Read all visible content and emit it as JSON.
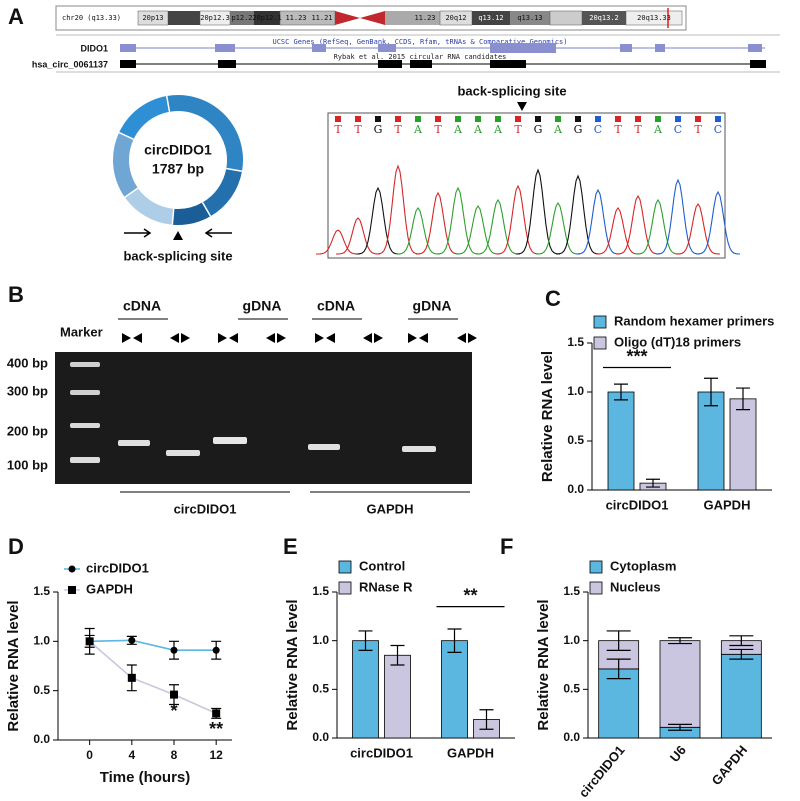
{
  "panel_a": {
    "label": "A",
    "ideogram": {
      "chrom": "chr20 (q13.33)",
      "bands": [
        "20p13",
        "20p12.3",
        "p12.2",
        "20p12.1",
        "11.23",
        "11.21",
        "11.23",
        "20q12",
        "q13.12",
        "q13.13",
        "20q13.2",
        "20q13.33"
      ]
    },
    "track_header": "UCSC Genes (RefSeq, GenBank, CCDS, Rfam, tRNAs & Comparative Genomics)",
    "track_sub": "Rybak et al. 2015 circular RNA candidates",
    "tracks": [
      "DIDO1",
      "hsa_circ_0061137"
    ],
    "circle": {
      "name": "circDIDO1",
      "size": "1787 bp",
      "site": "back-splicing site"
    },
    "chromatogram": {
      "site": "back-splicing site",
      "bases": [
        "T",
        "T",
        "G",
        "T",
        "A",
        "T",
        "A",
        "A",
        "A",
        "T",
        "G",
        "A",
        "G",
        "C",
        "T",
        "T",
        "A",
        "C",
        "T",
        "C"
      ]
    }
  },
  "panel_b": {
    "label": "B",
    "marker": "Marker",
    "groups": [
      "cDNA",
      "gDNA",
      "cDNA",
      "gDNA"
    ],
    "ladder": [
      "400 bp",
      "300 bp",
      "200 bp",
      "100 bp"
    ],
    "genes": [
      "circDIDO1",
      "GAPDH"
    ]
  },
  "chart_data": [
    {
      "type": "bar",
      "panel_label": "C",
      "ylabel": "Relative RNA level",
      "categories": [
        "circDIDO1",
        "GAPDH"
      ],
      "series": [
        {
          "name": "Random hexamer primers",
          "color": "#5bb6e0",
          "values": [
            1.0,
            1.0
          ],
          "errors": [
            0.08,
            0.14
          ]
        },
        {
          "name": "Oligo (dT)18 primers",
          "color": "#cac6e0",
          "values": [
            0.07,
            0.93
          ],
          "errors": [
            0.04,
            0.11
          ]
        }
      ],
      "ylim": [
        0,
        1.5
      ],
      "yticks": [
        {
          "value": 0,
          "label": "0.0"
        },
        0.5,
        {
          "value": 1,
          "label": "1.0"
        },
        1.5
      ],
      "annotations": [
        "***"
      ]
    },
    {
      "type": "line",
      "panel_label": "D",
      "ylabel": "Relative RNA level",
      "xlabel": "Time (hours)",
      "x": [
        0,
        4,
        8,
        12
      ],
      "series": [
        {
          "name": "circDIDO1",
          "color": "#5bb6e0",
          "marker": "circle",
          "values": [
            1.0,
            1.01,
            0.91,
            0.91
          ],
          "errors": [
            0.06,
            0.04,
            0.09,
            0.09
          ]
        },
        {
          "name": "GAPDH",
          "color": "#cac6e0",
          "marker": "square",
          "values": [
            1.0,
            0.63,
            0.46,
            0.27
          ],
          "errors": [
            0.13,
            0.13,
            0.1,
            0.05
          ]
        }
      ],
      "xlim": [
        -3,
        13.5
      ],
      "xticks": [
        0,
        4,
        8,
        12
      ],
      "ylim": [
        0,
        1.5
      ],
      "yticks": [
        {
          "value": 0,
          "label": "0.0"
        },
        0.5,
        {
          "value": 1,
          "label": "1.0"
        },
        1.5
      ],
      "annotations": [
        "*",
        "**"
      ]
    },
    {
      "type": "bar",
      "panel_label": "E",
      "ylabel": "Relative RNA level",
      "categories": [
        "circDIDO1",
        "GAPDH"
      ],
      "series": [
        {
          "name": "Control",
          "color": "#5bb6e0",
          "values": [
            1.0,
            1.0
          ],
          "errors": [
            0.1,
            0.12
          ]
        },
        {
          "name": "RNase R",
          "color": "#cac6e0",
          "values": [
            0.85,
            0.19
          ],
          "errors": [
            0.1,
            0.1
          ]
        }
      ],
      "ylim": [
        0,
        1.5
      ],
      "yticks": [
        {
          "value": 0,
          "label": "0.0"
        },
        0.5,
        {
          "value": 1,
          "label": "1.0"
        },
        1.5
      ],
      "annotations": [
        "**"
      ]
    },
    {
      "type": "stacked_bar",
      "panel_label": "F",
      "ylabel": "Relative RNA level",
      "categories": [
        "circDIDO1",
        "U6",
        "GAPDH"
      ],
      "series": [
        {
          "name": "Cytoplasm",
          "color": "#5bb6e0",
          "values": [
            0.71,
            0.11,
            0.86
          ],
          "errors": [
            0.1,
            0.03,
            0.05
          ]
        },
        {
          "name": "Nucleus",
          "color": "#cac6e0",
          "values": [
            0.29,
            0.89,
            0.14
          ],
          "errors": [
            0.1,
            0.03,
            0.05
          ]
        }
      ],
      "ylim": [
        0,
        1.5
      ],
      "yticks": [
        {
          "value": 0,
          "label": "0.0"
        },
        0.5,
        {
          "value": 1,
          "label": "1.0"
        },
        1.5
      ]
    }
  ]
}
